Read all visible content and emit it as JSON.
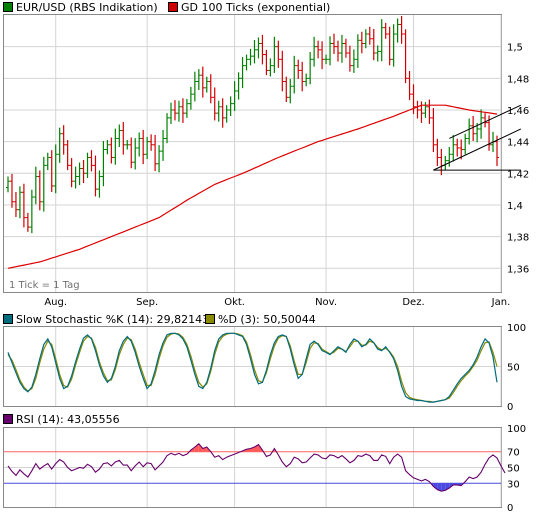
{
  "colors": {
    "bull": "#008000",
    "bear": "#d00000",
    "ma": "#dd0000",
    "stoch_k": "#006c80",
    "stoch_d": "#8a8a00",
    "rsi": "#66006a",
    "rsi_over": "#ff5a5a",
    "rsi_under": "#4a4ae0",
    "line70": "#ff6060",
    "line30": "#4a4ae0",
    "trend": "#000000",
    "grid": "#d4d4d4",
    "frame": "#888888"
  },
  "chart_data": [
    {
      "type": "ohlc",
      "title": "",
      "legend": [
        {
          "name": "EUR/USD (RBS Indikation)",
          "color": "#008000"
        },
        {
          "name": "GD 100 Ticks (exponential)",
          "color": "#d00000"
        }
      ],
      "note": "1 Tick = 1 Tag",
      "x_month_labels": [
        {
          "label": "Aug.",
          "t": 12
        },
        {
          "label": "Sep.",
          "t": 35
        },
        {
          "label": "Okt.",
          "t": 57
        },
        {
          "label": "Nov.",
          "t": 80
        },
        {
          "label": "Dez.",
          "t": 102
        },
        {
          "label": "Jan.",
          "t": 124
        }
      ],
      "ylim": [
        1.345,
        1.52
      ],
      "yticks": [
        1.36,
        1.38,
        1.4,
        1.42,
        1.44,
        1.46,
        1.48,
        1.5
      ],
      "ytick_labels": [
        "1,36",
        "1,38",
        "1,4",
        "1,42",
        "1,44",
        "1,46",
        "1,48",
        "1,5"
      ],
      "close": [
        1.415,
        1.402,
        1.397,
        1.408,
        1.392,
        1.386,
        1.405,
        1.418,
        1.402,
        1.425,
        1.43,
        1.412,
        1.432,
        1.445,
        1.438,
        1.425,
        1.415,
        1.418,
        1.423,
        1.42,
        1.43,
        1.425,
        1.41,
        1.418,
        1.435,
        1.438,
        1.43,
        1.442,
        1.447,
        1.438,
        1.438,
        1.427,
        1.436,
        1.442,
        1.432,
        1.44,
        1.438,
        1.426,
        1.434,
        1.442,
        1.455,
        1.46,
        1.458,
        1.462,
        1.458,
        1.464,
        1.47,
        1.478,
        1.482,
        1.474,
        1.478,
        1.468,
        1.458,
        1.462,
        1.455,
        1.46,
        1.464,
        1.472,
        1.48,
        1.488,
        1.492,
        1.494,
        1.498,
        1.502,
        1.495,
        1.485,
        1.488,
        1.5,
        1.492,
        1.478,
        1.468,
        1.475,
        1.488,
        1.485,
        1.478,
        1.48,
        1.492,
        1.5,
        1.498,
        1.492,
        1.492,
        1.502,
        1.5,
        1.496,
        1.502,
        1.496,
        1.488,
        1.492,
        1.504,
        1.502,
        1.508,
        1.505,
        1.496,
        1.497,
        1.512,
        1.508,
        1.492,
        1.508,
        1.514,
        1.508,
        1.48,
        1.47,
        1.462,
        1.46,
        1.458,
        1.462,
        1.455,
        1.438,
        1.43,
        1.425,
        1.428,
        1.432,
        1.438,
        1.436,
        1.435,
        1.442,
        1.45,
        1.445,
        1.448,
        1.455,
        1.452,
        1.438,
        1.44,
        1.43
      ],
      "ma_anchors": [
        [
          0,
          1.36
        ],
        [
          8,
          1.364
        ],
        [
          18,
          1.372
        ],
        [
          28,
          1.382
        ],
        [
          38,
          1.392
        ],
        [
          45,
          1.403
        ],
        [
          52,
          1.413
        ],
        [
          60,
          1.421
        ],
        [
          68,
          1.43
        ],
        [
          78,
          1.44
        ],
        [
          88,
          1.448
        ],
        [
          97,
          1.456
        ],
        [
          104,
          1.463
        ],
        [
          110,
          1.463
        ],
        [
          116,
          1.46
        ],
        [
          124,
          1.457
        ],
        [
          129,
          1.454
        ]
      ],
      "trend_channel": [
        {
          "from": [
            107,
            1.422
          ],
          "to": [
            129,
            1.448
          ]
        },
        {
          "from": [
            111,
            1.442
          ],
          "to": [
            129,
            1.463
          ]
        },
        {
          "from": [
            107,
            1.422
          ],
          "to": [
            129,
            1.422
          ]
        }
      ]
    },
    {
      "type": "line",
      "legend": [
        {
          "name": "Slow Stochastic %K (14): 29,82143",
          "color": "#006c80"
        },
        {
          "name": "%D (3): 50,50044",
          "color": "#8a8a00"
        }
      ],
      "ylim": [
        0,
        100
      ],
      "yticks": [
        0,
        50,
        100
      ],
      "ytick_labels": [
        "0",
        "50",
        "100"
      ],
      "series": [
        {
          "name": "Slow Stochastic %K (14): 29,82143",
          "values": [
            68,
            55,
            42,
            30,
            22,
            18,
            24,
            40,
            60,
            78,
            85,
            75,
            55,
            35,
            22,
            25,
            38,
            56,
            72,
            86,
            90,
            85,
            70,
            52,
            38,
            30,
            35,
            50,
            70,
            82,
            88,
            82,
            68,
            50,
            35,
            22,
            28,
            45,
            65,
            80,
            90,
            92,
            92,
            90,
            85,
            75,
            58,
            40,
            25,
            22,
            30,
            48,
            70,
            85,
            90,
            92,
            92,
            92,
            90,
            88,
            78,
            60,
            40,
            28,
            30,
            45,
            65,
            80,
            88,
            90,
            88,
            72,
            52,
            35,
            40,
            60,
            78,
            82,
            78,
            70,
            68,
            65,
            70,
            75,
            72,
            68,
            78,
            85,
            82,
            75,
            78,
            85,
            80,
            72,
            70,
            75,
            68,
            60,
            45,
            25,
            12,
            9,
            8,
            7,
            7,
            6,
            5,
            5,
            6,
            7,
            8,
            12,
            20,
            28,
            35,
            40,
            45,
            52,
            62,
            75,
            85,
            80,
            62,
            30
          ]
        },
        {
          "name": "%D (3): 50,50044",
          "values": [
            65,
            58,
            46,
            33,
            24,
            19,
            22,
            35,
            55,
            72,
            82,
            78,
            60,
            40,
            26,
            24,
            34,
            52,
            68,
            82,
            88,
            86,
            74,
            56,
            42,
            32,
            33,
            46,
            65,
            78,
            86,
            84,
            72,
            55,
            40,
            26,
            26,
            40,
            60,
            76,
            87,
            91,
            92,
            91,
            87,
            78,
            63,
            45,
            30,
            24,
            28,
            44,
            65,
            81,
            88,
            91,
            92,
            92,
            91,
            89,
            81,
            65,
            46,
            32,
            30,
            42,
            60,
            76,
            86,
            89,
            88,
            76,
            57,
            40,
            40,
            55,
            73,
            80,
            79,
            72,
            69,
            66,
            68,
            73,
            72,
            69,
            75,
            82,
            82,
            77,
            77,
            82,
            80,
            74,
            71,
            73,
            69,
            62,
            50,
            31,
            17,
            11,
            9,
            8,
            7,
            6,
            6,
            5,
            6,
            7,
            8,
            10,
            17,
            25,
            32,
            38,
            43,
            50,
            58,
            70,
            80,
            81,
            68,
            50
          ]
        }
      ]
    },
    {
      "type": "line",
      "legend": [
        {
          "name": "RSI (14): 43,05556",
          "color": "#66006a"
        }
      ],
      "ylim": [
        0,
        100
      ],
      "yticks": [
        0,
        30,
        50,
        70,
        100
      ],
      "ytick_labels": [
        "0",
        "30",
        "50",
        "70",
        "100"
      ],
      "hlines": [
        70,
        30
      ],
      "series": [
        {
          "name": "RSI (14): 43,05556",
          "values": [
            52,
            45,
            40,
            47,
            42,
            38,
            46,
            55,
            48,
            52,
            55,
            48,
            55,
            60,
            57,
            50,
            46,
            48,
            50,
            49,
            54,
            51,
            44,
            48,
            55,
            56,
            52,
            57,
            59,
            53,
            53,
            46,
            52,
            57,
            51,
            56,
            55,
            47,
            52,
            57,
            65,
            68,
            66,
            68,
            65,
            67,
            72,
            76,
            80,
            74,
            76,
            70,
            63,
            65,
            60,
            63,
            65,
            67,
            69,
            71,
            73,
            74,
            76,
            79,
            72,
            64,
            66,
            74,
            66,
            57,
            51,
            55,
            63,
            61,
            56,
            57,
            62,
            67,
            66,
            62,
            61,
            66,
            65,
            62,
            65,
            61,
            56,
            59,
            65,
            64,
            67,
            65,
            59,
            59,
            66,
            64,
            55,
            63,
            67,
            63,
            46,
            41,
            37,
            35,
            33,
            35,
            32,
            26,
            22,
            20,
            21,
            24,
            28,
            28,
            27,
            32,
            38,
            36,
            38,
            44,
            54,
            62,
            66,
            62,
            52,
            43
          ]
        }
      ]
    }
  ]
}
